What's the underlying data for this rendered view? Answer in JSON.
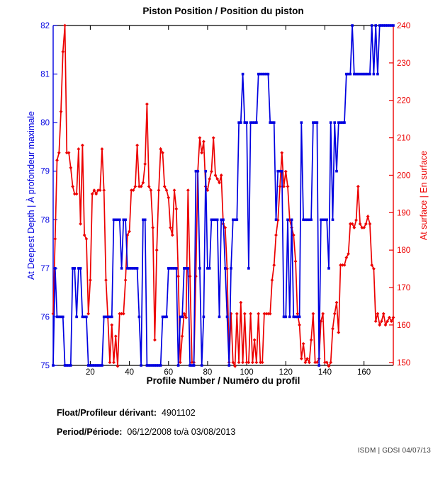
{
  "title": "Piston Position / Position du piston",
  "chart_data": {
    "type": "line",
    "title": "Piston Position / Position du piston",
    "xlabel": "Profile Number / Numéro du profil",
    "xlim": [
      1,
      175
    ],
    "x_ticks": [
      20,
      40,
      60,
      80,
      100,
      120,
      140,
      160
    ],
    "grid": false,
    "legend": "none",
    "left_axis": {
      "label": "At Deepest Depth | À profondeur maximale",
      "color": "#0000E0",
      "lim": [
        75,
        82
      ],
      "ticks": [
        75,
        76,
        77,
        78,
        79,
        80,
        81,
        82
      ]
    },
    "right_axis": {
      "label": "At surface | En surface",
      "color": "#EC0000",
      "lim": [
        149.2,
        240
      ],
      "ticks": [
        150,
        160,
        170,
        180,
        190,
        200,
        210,
        220,
        230,
        240
      ]
    },
    "x_start": 1,
    "series": [
      {
        "name": "At Deepest Depth / À profondeur maximale",
        "axis": "left",
        "color": "#0000E0",
        "marker": "square",
        "values": [
          75,
          77,
          76,
          76,
          76,
          76,
          75,
          75,
          75,
          75,
          77,
          77,
          76,
          77,
          77,
          76,
          76,
          76,
          75,
          75,
          75,
          75,
          75,
          75,
          75,
          75,
          76,
          76,
          76,
          76,
          76,
          78,
          78,
          78,
          78,
          77,
          78,
          78,
          77,
          77,
          77,
          77,
          77,
          77,
          76,
          75,
          78,
          78,
          75,
          75,
          75,
          75,
          75,
          75,
          75,
          75,
          76,
          76,
          76,
          77,
          77,
          77,
          77,
          77,
          75,
          76,
          76,
          77,
          77,
          77,
          75,
          75,
          75,
          79,
          79,
          77,
          75,
          76,
          79,
          77,
          77,
          78,
          78,
          78,
          78,
          76,
          78,
          78,
          77,
          76,
          75,
          77,
          78,
          78,
          78,
          80,
          80,
          81,
          80,
          80,
          77,
          80,
          80,
          80,
          80,
          81,
          81,
          81,
          81,
          81,
          81,
          80,
          80,
          80,
          78,
          79,
          79,
          79,
          76,
          76,
          78,
          76,
          78,
          76,
          76,
          76,
          76,
          80,
          78,
          78,
          78,
          78,
          78,
          80,
          80,
          80,
          75,
          78,
          78,
          78,
          78,
          77,
          80,
          78,
          80,
          79,
          80,
          80,
          80,
          80,
          81,
          81,
          81,
          82,
          81,
          81,
          81,
          81,
          81,
          81,
          81,
          81,
          81,
          82,
          81,
          82,
          81,
          82,
          82,
          82,
          82,
          82,
          82,
          82,
          82
        ]
      },
      {
        "name": "At surface / En surface",
        "axis": "right",
        "color": "#EC0000",
        "marker": "diamond",
        "values": [
          163,
          183,
          204,
          206,
          217,
          233,
          240,
          206,
          206,
          202,
          197,
          195,
          195,
          207,
          187,
          208,
          184,
          183,
          163,
          172,
          195,
          196,
          195,
          196,
          196,
          207,
          196,
          172,
          162,
          150,
          160,
          150,
          157,
          149,
          163,
          163,
          163,
          172,
          184,
          185,
          196,
          196,
          197,
          208,
          197,
          197,
          198,
          203,
          219,
          197,
          196,
          186,
          156,
          180,
          196,
          207,
          206,
          197,
          196,
          194,
          186,
          184,
          196,
          191,
          173,
          150,
          157,
          163,
          162,
          196,
          173,
          150,
          150,
          173,
          201,
          210,
          206,
          209,
          197,
          196,
          199,
          201,
          210,
          200,
          199,
          198,
          200,
          187,
          186,
          175,
          150,
          163,
          150,
          149,
          163,
          150,
          166,
          150,
          163,
          150,
          150,
          163,
          150,
          156,
          150,
          163,
          150,
          150,
          163,
          163,
          163,
          163,
          172,
          176,
          184,
          188,
          197,
          206,
          197,
          201,
          197,
          188,
          186,
          184,
          177,
          163,
          160,
          151,
          155,
          150,
          151,
          150,
          156,
          163,
          150,
          150,
          151,
          161,
          163,
          150,
          150,
          149,
          150,
          159,
          163,
          166,
          158,
          176,
          176,
          176,
          178,
          179,
          187,
          187,
          186,
          188,
          197,
          187,
          186,
          186,
          187,
          189,
          187,
          176,
          175,
          161,
          163,
          160,
          161,
          163,
          160,
          161,
          162,
          161,
          162
        ]
      }
    ]
  },
  "footer": {
    "float_label": "Float/Profileur dérivant:",
    "float_value": "4901102",
    "period_label": "Period/Période:",
    "period_value": "06/12/2008  to/à  03/08/2013"
  },
  "credit": "ISDM | GDSI 04/07/13"
}
